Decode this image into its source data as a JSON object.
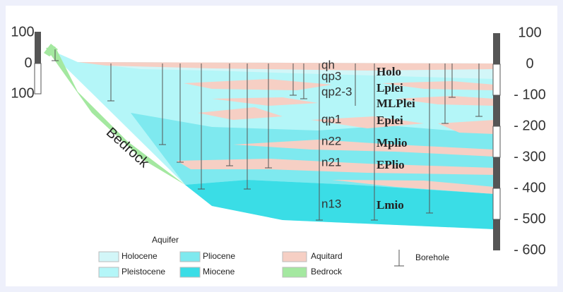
{
  "left_scale": {
    "labels": [
      "100",
      "0",
      "100"
    ]
  },
  "right_scale": {
    "labels": [
      "100",
      "0",
      "- 100",
      "- 200",
      "- 300",
      "- 400",
      "- 500",
      "- 600"
    ]
  },
  "bedrock_label": "Bedrock",
  "formations": [
    {
      "code": "qh",
      "name": "Holo"
    },
    {
      "code": "qp3",
      "name": "Lplei"
    },
    {
      "code": "qp2-3",
      "name": "MLPlei"
    },
    {
      "code": "qp1",
      "name": "Eplei"
    },
    {
      "code": "n22",
      "name": "Mplio"
    },
    {
      "code": "n21",
      "name": "EPlio"
    },
    {
      "code": "n13",
      "name": "Lmio"
    }
  ],
  "legend": {
    "title": "Aquifer",
    "items": [
      "Holocene",
      "Pliocene",
      "Aquitard",
      "Borehole",
      "Pleistocene",
      "Miocene",
      "Bedrock"
    ]
  }
}
